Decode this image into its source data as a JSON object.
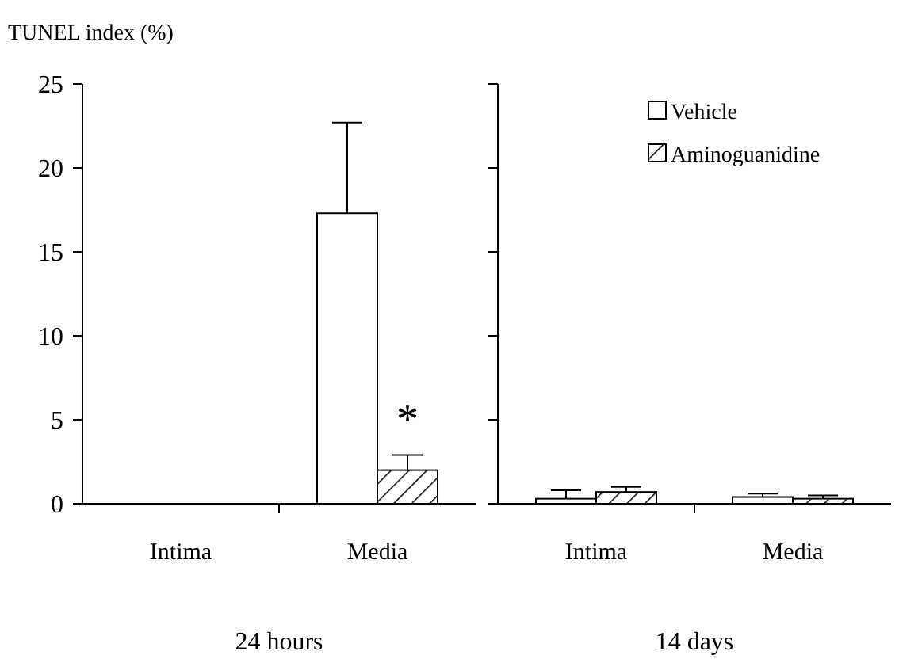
{
  "chart_data": [
    {
      "type": "bar",
      "ylabel": "TUNEL index (%)",
      "xlabel": "24 hours",
      "categories": [
        "Intima",
        "Media"
      ],
      "ylim": [
        0,
        25
      ],
      "yticks": [
        0,
        5,
        10,
        15,
        20,
        25
      ],
      "grid": false,
      "legend": false,
      "annotations": [
        {
          "text": "*",
          "x": "Media",
          "y": 6
        }
      ],
      "series": [
        {
          "color": "#ffffff",
          "values": [
            0,
            17.3
          ],
          "errors": [
            null,
            5.4
          ]
        },
        {
          "color": "#000000",
          "values": [
            0,
            2.0
          ],
          "errors": [
            null,
            0.9
          ]
        }
      ]
    },
    {
      "type": "bar",
      "xlabel": "14 days",
      "categories": [
        "Intima",
        "Media"
      ],
      "ylim": [
        0,
        25
      ],
      "yticks": [
        0,
        5,
        10,
        15,
        20,
        25
      ],
      "tick_labels": "x",
      "grid": false,
      "legend": "top",
      "series": [
        {
          "name": "Vehicle",
          "color": "#ffffff",
          "values": [
            0.3,
            0.4
          ],
          "errors": [
            0.5,
            0.2
          ]
        },
        {
          "name": "Aminoguanidine",
          "color": "#000000",
          "values": [
            0.7,
            0.3
          ],
          "errors": [
            0.3,
            0.2
          ]
        }
      ]
    }
  ]
}
